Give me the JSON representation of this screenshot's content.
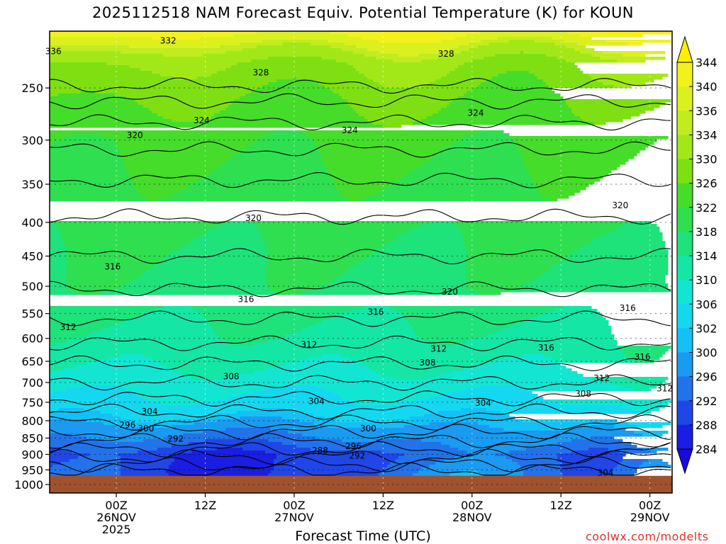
{
  "chart_data": {
    "type": "heatmap",
    "title": "2025112518 NAM Forecast Equiv. Potential Temperature (K) for KOUN",
    "xlabel": "Forecast Time (UTC)",
    "ylabel": "",
    "credit": "coolwx.com/modelts",
    "y_scale": "log-pressure",
    "y_range_hpa": [
      1030,
      205
    ],
    "y_ticks": [
      250,
      300,
      350,
      400,
      450,
      500,
      550,
      600,
      650,
      700,
      750,
      800,
      850,
      900,
      950,
      1000
    ],
    "x_range_hours": [
      -3,
      81
    ],
    "x_ticks": [
      {
        "hour": 6,
        "lines": [
          "00Z",
          "26NOV",
          "2025"
        ]
      },
      {
        "hour": 18,
        "lines": [
          "12Z"
        ]
      },
      {
        "hour": 30,
        "lines": [
          "00Z",
          "27NOV"
        ]
      },
      {
        "hour": 42,
        "lines": [
          "12Z"
        ]
      },
      {
        "hour": 54,
        "lines": [
          "00Z",
          "28NOV"
        ]
      },
      {
        "hour": 66,
        "lines": [
          "12Z"
        ]
      },
      {
        "hour": 78,
        "lines": [
          "00Z",
          "29NOV"
        ]
      }
    ],
    "surface_pressure_hpa": 970,
    "colorbar": {
      "labels": [
        344,
        340,
        336,
        334,
        330,
        326,
        322,
        318,
        314,
        310,
        306,
        302,
        300,
        296,
        292,
        288,
        284
      ],
      "colors": [
        "#ffee00",
        "#f2f21a",
        "#dcf020",
        "#c0ec20",
        "#a2e818",
        "#7ee012",
        "#46dc2a",
        "#2ee050",
        "#1ee27a",
        "#14e6a6",
        "#12e6d2",
        "#14d8f0",
        "#14c0f6",
        "#1a9af0",
        "#2272ea",
        "#2046e8",
        "#1a1ee2",
        "#1a0ad8"
      ]
    },
    "contour_labels": [
      {
        "value": "336",
        "hour": -2.5,
        "hpa": 220
      },
      {
        "value": "332",
        "hour": 13,
        "hpa": 212
      },
      {
        "value": "328",
        "hour": 25.5,
        "hpa": 237
      },
      {
        "value": "328",
        "hour": 50.5,
        "hpa": 222
      },
      {
        "value": "324",
        "hour": 17.5,
        "hpa": 280
      },
      {
        "value": "324",
        "hour": 37.5,
        "hpa": 290
      },
      {
        "value": "324",
        "hour": 54.5,
        "hpa": 273
      },
      {
        "value": "320",
        "hour": 8.5,
        "hpa": 295
      },
      {
        "value": "320",
        "hour": 24.5,
        "hpa": 394
      },
      {
        "value": "320",
        "hour": 74,
        "hpa": 377
      },
      {
        "value": "320",
        "hour": 51,
        "hpa": 510
      },
      {
        "value": "316",
        "hour": 5.5,
        "hpa": 467
      },
      {
        "value": "316",
        "hour": 23.5,
        "hpa": 523
      },
      {
        "value": "316",
        "hour": 41,
        "hpa": 547
      },
      {
        "value": "316",
        "hour": 64,
        "hpa": 620
      },
      {
        "value": "316",
        "hour": 75,
        "hpa": 540
      },
      {
        "value": "316",
        "hour": 77,
        "hpa": 640
      },
      {
        "value": "312",
        "hour": -0.5,
        "hpa": 577
      },
      {
        "value": "312",
        "hour": 32,
        "hpa": 613
      },
      {
        "value": "312",
        "hour": 49.5,
        "hpa": 622
      },
      {
        "value": "312",
        "hour": 71.5,
        "hpa": 690
      },
      {
        "value": "312",
        "hour": 80,
        "hpa": 715
      },
      {
        "value": "308",
        "hour": 21.5,
        "hpa": 685
      },
      {
        "value": "308",
        "hour": 48,
        "hpa": 653
      },
      {
        "value": "308",
        "hour": 69,
        "hpa": 728
      },
      {
        "value": "304",
        "hour": 33,
        "hpa": 747
      },
      {
        "value": "304",
        "hour": 10.5,
        "hpa": 775
      },
      {
        "value": "304",
        "hour": 55.5,
        "hpa": 752
      },
      {
        "value": "304",
        "hour": 72,
        "hpa": 960
      },
      {
        "value": "300",
        "hour": 10,
        "hpa": 822
      },
      {
        "value": "300",
        "hour": 40,
        "hpa": 822
      },
      {
        "value": "296",
        "hour": 7.5,
        "hpa": 812
      },
      {
        "value": "296",
        "hour": 38,
        "hpa": 875
      },
      {
        "value": "292",
        "hour": 14,
        "hpa": 852
      },
      {
        "value": "292",
        "hour": 38.5,
        "hpa": 905
      },
      {
        "value": "288",
        "hour": 33.5,
        "hpa": 888
      }
    ]
  }
}
